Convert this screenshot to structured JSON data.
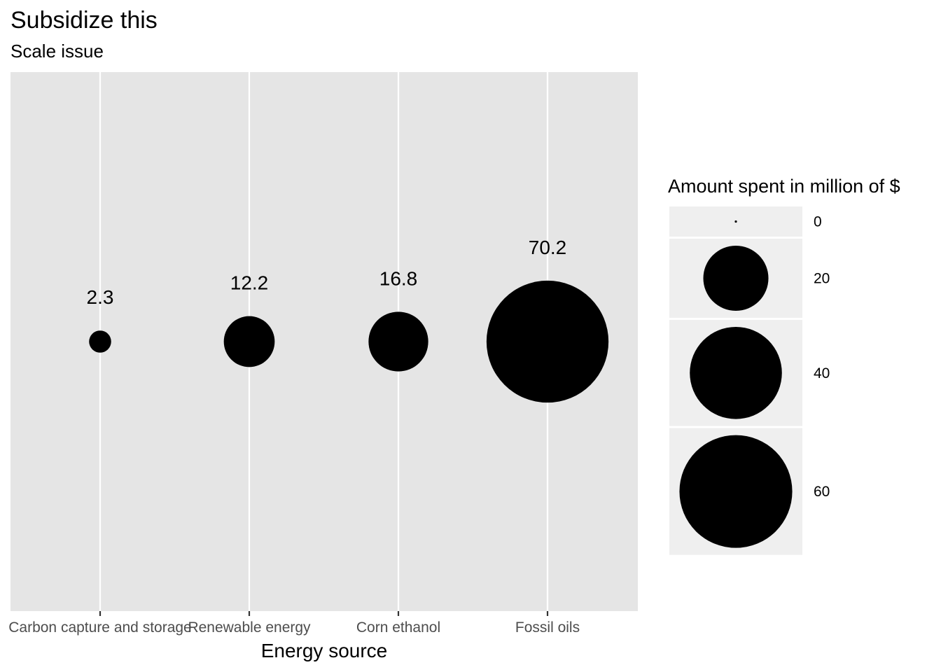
{
  "chart_data": {
    "type": "scatter",
    "title": "Subsidize this",
    "subtitle": "Scale issue",
    "xlabel": "Energy source",
    "ylabel": "",
    "categories": [
      "Carbon capture and storage",
      "Renewable energy",
      "Corn ethanol",
      "Fossil oils"
    ],
    "values": [
      2.3,
      12.2,
      16.8,
      70.2
    ],
    "data_labels": [
      "2.3",
      "12.2",
      "16.8",
      "70.2"
    ],
    "encoding": "point size proportional to value",
    "legend": {
      "title": "Amount spent in million of $",
      "breaks": [
        0,
        20,
        40,
        60
      ],
      "labels": [
        "0",
        "20",
        "40",
        "60"
      ],
      "placement": "right"
    },
    "grid": true
  },
  "colors": {
    "panel": "#e5e5e5",
    "grid": "#ffffff",
    "point": "#000000",
    "legend_key": "#efefef",
    "tick_text": "#4d4d4d"
  }
}
